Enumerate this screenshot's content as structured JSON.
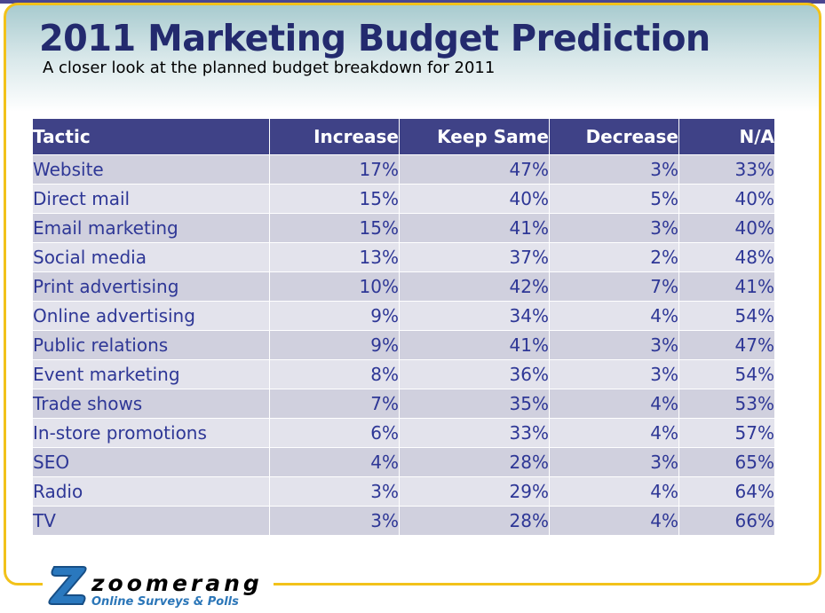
{
  "slide": {
    "title": "2011 Marketing Budget Prediction",
    "subtitle": "A closer look at the planned budget breakdown for 2011"
  },
  "table": {
    "headers": [
      "Tactic",
      "Increase",
      "Keep Same",
      "Decrease",
      "N/A"
    ],
    "rows": [
      [
        "Website",
        "17%",
        "47%",
        "3%",
        "33%"
      ],
      [
        "Direct mail",
        "15%",
        "40%",
        "5%",
        "40%"
      ],
      [
        "Email marketing",
        "15%",
        "41%",
        "3%",
        "40%"
      ],
      [
        "Social media",
        "13%",
        "37%",
        "2%",
        "48%"
      ],
      [
        "Print advertising",
        "10%",
        "42%",
        "7%",
        "41%"
      ],
      [
        "Online advertising",
        "9%",
        "34%",
        "4%",
        "54%"
      ],
      [
        "Public relations",
        "9%",
        "41%",
        "3%",
        "47%"
      ],
      [
        "Event marketing",
        "8%",
        "36%",
        "3%",
        "54%"
      ],
      [
        "Trade shows",
        "7%",
        "35%",
        "4%",
        "53%"
      ],
      [
        "In-store promotions",
        "6%",
        "33%",
        "4%",
        "57%"
      ],
      [
        "SEO",
        "4%",
        "28%",
        "3%",
        "65%"
      ],
      [
        "Radio",
        "3%",
        "29%",
        "4%",
        "64%"
      ],
      [
        "TV",
        "3%",
        "28%",
        "4%",
        "66%"
      ]
    ]
  },
  "logo": {
    "name": "zoomerang",
    "tagline": "Online Surveys & Polls"
  },
  "colors": {
    "title": "#232a6e",
    "header_bg": "#3f4287",
    "row_dark": "#d0d0de",
    "row_light": "#e3e3ec",
    "frame": "#f2c21a"
  }
}
